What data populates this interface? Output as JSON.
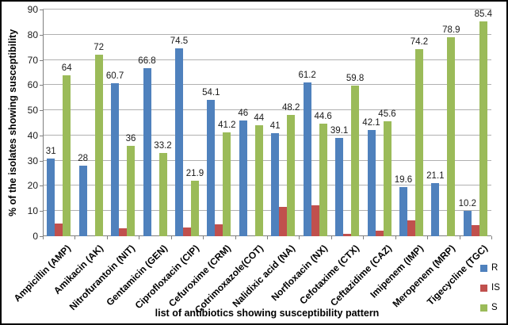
{
  "chart_data": {
    "type": "bar",
    "title": "",
    "xlabel": "list of antibiotics showing susceptibility  pattern",
    "ylabel": "% of the isolates showing susceptibility",
    "ylim": [
      0,
      90
    ],
    "ytick_step": 10,
    "grid": true,
    "legend_position": "bottom-right",
    "categories": [
      "Ampicillin (AMP)",
      "Amikacin (AK)",
      "Nitrofurantoin (NIT)",
      "Gentamicin (GEN)",
      "Ciprofloxacin (CIP)",
      "Cefuroxime (CRM)",
      "Cotrimoxazole(COT)",
      "Nalidixic acid (NA)",
      "Norfloxacin (NX)",
      "Cefotaxime (CTX)",
      "Ceftazidime (CAZ)",
      "Imipenem (IMP)",
      "Meropenem (MRP)",
      "Tigecycline (TGC)"
    ],
    "series": [
      {
        "name": "R",
        "color": "#4F81BD",
        "show_labels": true,
        "values": [
          31,
          28,
          60.7,
          66.8,
          74.5,
          54.1,
          46,
          41,
          61.2,
          39.1,
          42.1,
          19.6,
          21.1,
          10.2
        ]
      },
      {
        "name": "IS",
        "color": "#C0504D",
        "show_labels": false,
        "values": [
          5,
          0,
          3.3,
          0,
          3.6,
          4.7,
          0,
          11.8,
          12.3,
          1.1,
          2.3,
          6.2,
          0,
          4.4
        ]
      },
      {
        "name": "S",
        "color": "#9BBB59",
        "show_labels": true,
        "values": [
          64,
          72,
          36,
          33.2,
          21.9,
          41.2,
          44,
          48.2,
          44.6,
          59.8,
          45.6,
          74.2,
          78.9,
          85.4
        ]
      }
    ]
  },
  "colors": {
    "background": "#FFFFFF",
    "border": "#000000",
    "gridline": "#B0B0B0",
    "axis": "#7F7F7F",
    "tick_text": "#1A1A1A",
    "label_text": "#1A1A1A"
  }
}
